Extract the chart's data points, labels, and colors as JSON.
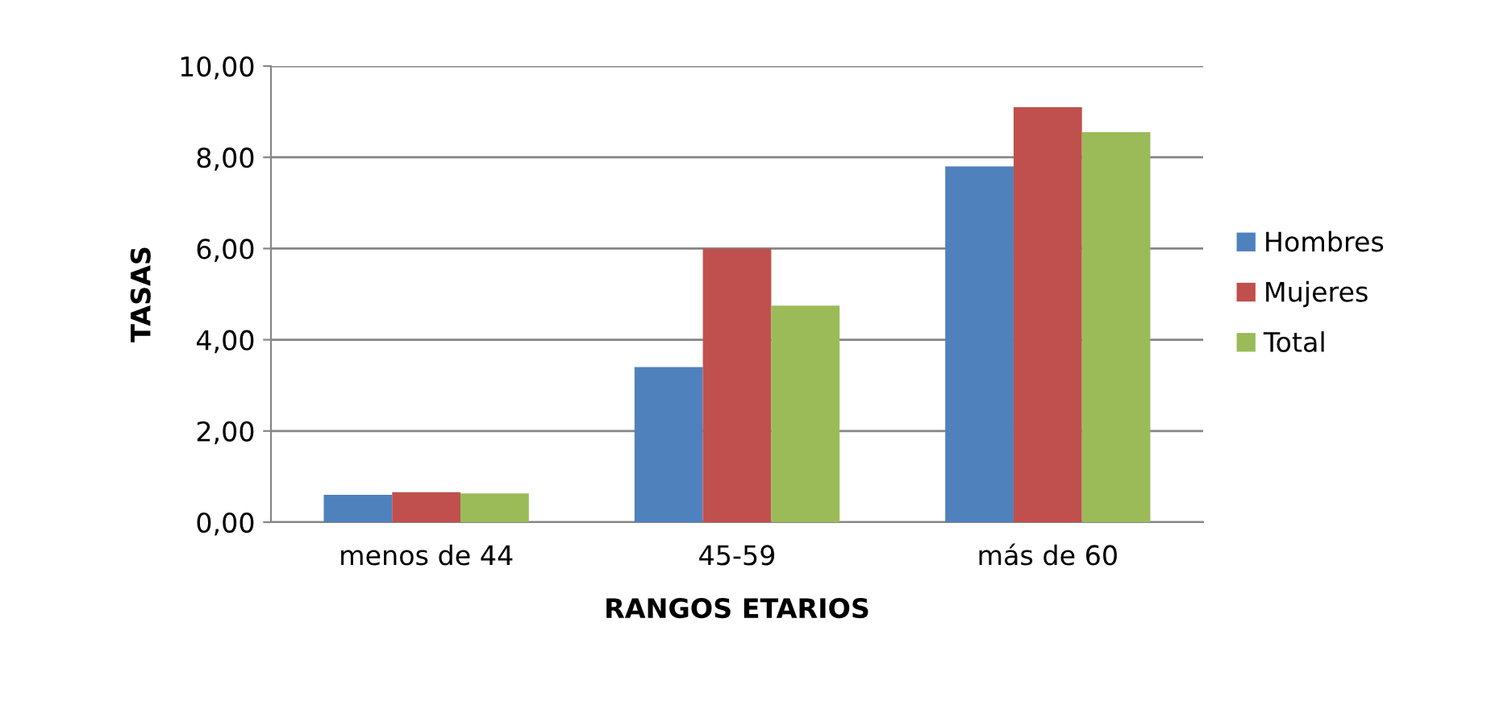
{
  "chart_data": {
    "type": "bar",
    "xlabel": "RANGOS ETARIOS",
    "ylabel": "TASAS",
    "categories": [
      "menos de 44",
      "45-59",
      "más de 60"
    ],
    "series": [
      {
        "name": "Hombres",
        "color": "#4f81bd",
        "values": [
          0.6,
          3.4,
          7.8
        ]
      },
      {
        "name": "Mujeres",
        "color": "#c0504d",
        "values": [
          0.66,
          6.0,
          9.1
        ]
      },
      {
        "name": "Total",
        "color": "#9bbb59",
        "values": [
          0.63,
          4.75,
          8.55
        ]
      }
    ],
    "ylim": [
      0,
      10
    ],
    "yticks": [
      {
        "value": 0,
        "label": "0,00"
      },
      {
        "value": 2,
        "label": "2,00"
      },
      {
        "value": 4,
        "label": "4,00"
      },
      {
        "value": 6,
        "label": "6,00"
      },
      {
        "value": 8,
        "label": "8,00"
      },
      {
        "value": 10,
        "label": "10,00"
      }
    ],
    "grid": "y",
    "legend": "right"
  }
}
